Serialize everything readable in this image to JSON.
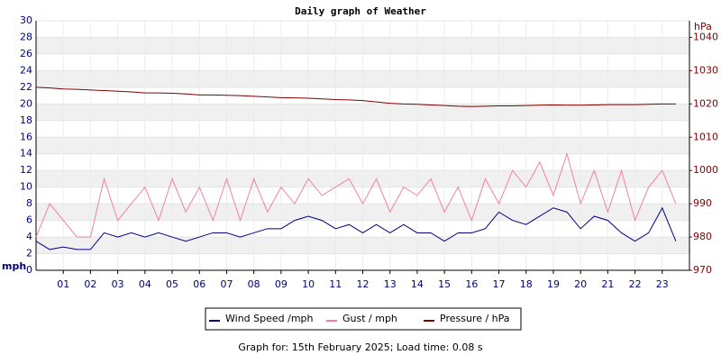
{
  "chart_data": {
    "type": "line",
    "title": "Daily graph of Weather",
    "footer": "Graph for: 15th February 2025; Load time: 0.08 s",
    "y_label": "mph",
    "y2_label": "hPa",
    "x": [
      0,
      0.5,
      1,
      1.5,
      2,
      2.5,
      3,
      3.5,
      4,
      4.5,
      5,
      5.5,
      6,
      6.5,
      7,
      7.5,
      8,
      8.5,
      9,
      9.5,
      10,
      10.5,
      11,
      11.5,
      12,
      12.5,
      13,
      13.5,
      14,
      14.5,
      15,
      15.5,
      16,
      16.5,
      17,
      17.5,
      18,
      18.5,
      19,
      19.5,
      20,
      20.5,
      21,
      21.5,
      22,
      22.5,
      23,
      23.5
    ],
    "xlim": [
      0,
      24
    ],
    "xticks": [
      {
        "value": 1,
        "label": "01"
      },
      {
        "value": 2,
        "label": "02"
      },
      {
        "value": 3,
        "label": "03"
      },
      {
        "value": 4,
        "label": "04"
      },
      {
        "value": 5,
        "label": "05"
      },
      {
        "value": 6,
        "label": "06"
      },
      {
        "value": 7,
        "label": "07"
      },
      {
        "value": 8,
        "label": "08"
      },
      {
        "value": 9,
        "label": "09"
      },
      {
        "value": 10,
        "label": "10"
      },
      {
        "value": 11,
        "label": "11"
      },
      {
        "value": 12,
        "label": "12"
      },
      {
        "value": 13,
        "label": "13"
      },
      {
        "value": 14,
        "label": "14"
      },
      {
        "value": 15,
        "label": "15"
      },
      {
        "value": 16,
        "label": "16"
      },
      {
        "value": 17,
        "label": "17"
      },
      {
        "value": 18,
        "label": "18"
      },
      {
        "value": 19,
        "label": "19"
      },
      {
        "value": 20,
        "label": "20"
      },
      {
        "value": 21,
        "label": "21"
      },
      {
        "value": 22,
        "label": "22"
      },
      {
        "value": 23,
        "label": "23"
      }
    ],
    "ylim": [
      0,
      30
    ],
    "yticks": [
      0,
      2,
      4,
      6,
      8,
      10,
      12,
      14,
      16,
      18,
      20,
      22,
      24,
      26,
      28,
      30
    ],
    "y2lim": [
      970,
      1045
    ],
    "y2ticks": [
      970,
      980,
      990,
      1000,
      1010,
      1020,
      1030,
      1040
    ],
    "grid": true,
    "series": [
      {
        "name": "Wind Speed /mph",
        "color": "#000080",
        "values": [
          3.5,
          2.5,
          2.8,
          2.5,
          2.5,
          4.5,
          4,
          4.5,
          4,
          4.5,
          4,
          3.5,
          4,
          4.5,
          4.5,
          4,
          4.5,
          5,
          5,
          6,
          6.5,
          6,
          5,
          5.5,
          4.5,
          5.5,
          4.5,
          5.5,
          4.5,
          4.5,
          3.5,
          4.5,
          4.5,
          5,
          7,
          6,
          5.5,
          6.5,
          7.5,
          7,
          5,
          6.5,
          6,
          4.5,
          3.5,
          4.5,
          7.5,
          3.5
        ]
      },
      {
        "name": "Gust / mph",
        "color": "#f080a8",
        "values": [
          4,
          8,
          6,
          4,
          4,
          11,
          6,
          8,
          10,
          6,
          11,
          7,
          10,
          6,
          11,
          6,
          11,
          7,
          10,
          8,
          11,
          9,
          10,
          11,
          8,
          11,
          7,
          10,
          9,
          11,
          7,
          10,
          6,
          11,
          8,
          12,
          10,
          13,
          9,
          14,
          8,
          12,
          7,
          12,
          6,
          10,
          12,
          8
        ]
      },
      {
        "name": "Pressure / hPa",
        "color": "#800000",
        "axis": "y2",
        "values": [
          1025,
          1024.8,
          1024.5,
          1024.4,
          1024.2,
          1024,
          1023.8,
          1023.6,
          1023.3,
          1023.3,
          1023.2,
          1023,
          1022.7,
          1022.7,
          1022.6,
          1022.5,
          1022.3,
          1022.1,
          1021.9,
          1021.8,
          1021.7,
          1021.5,
          1021.3,
          1021.2,
          1021,
          1020.6,
          1020.2,
          1020,
          1019.9,
          1019.7,
          1019.5,
          1019.3,
          1019.2,
          1019.3,
          1019.4,
          1019.4,
          1019.5,
          1019.6,
          1019.7,
          1019.6,
          1019.6,
          1019.7,
          1019.8,
          1019.8,
          1019.8,
          1019.9,
          1020,
          1020
        ]
      }
    ]
  }
}
